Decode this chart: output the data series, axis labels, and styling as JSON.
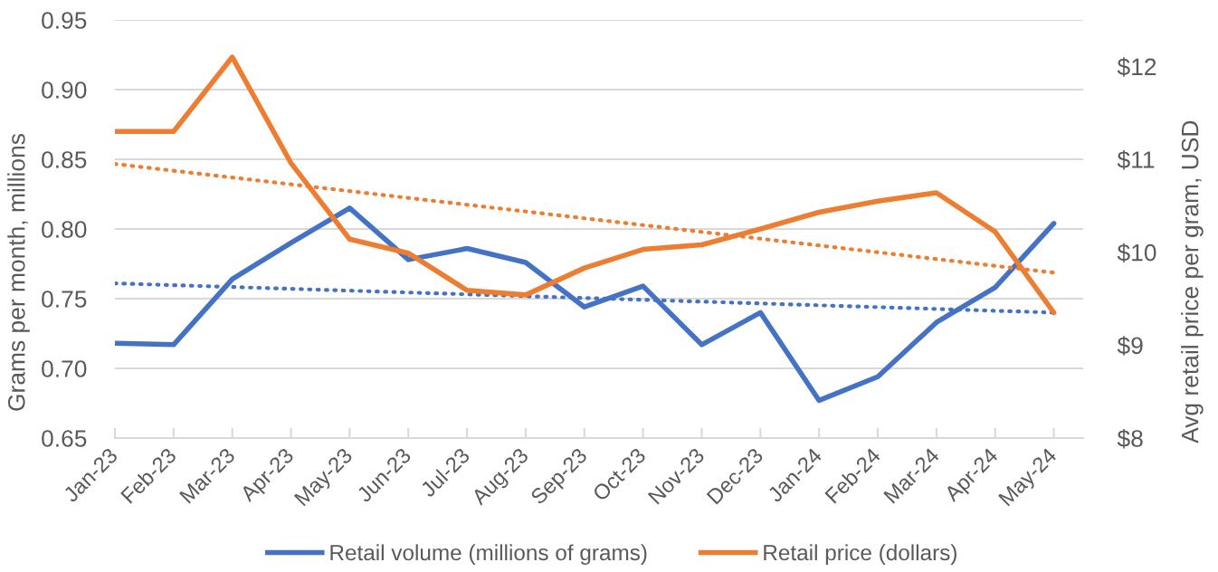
{
  "chart_data": {
    "type": "line",
    "line_style": "solid",
    "grid": "y",
    "legend": "bottom",
    "categories": [
      "Jan-23",
      "Feb-23",
      "Mar-23",
      "Apr-23",
      "May-23",
      "Jun-23",
      "Jul-23",
      "Aug-23",
      "Sep-23",
      "Oct-23",
      "Nov-23",
      "Dec-23",
      "Jan-24",
      "Feb-24",
      "Mar-24",
      "Apr-24",
      "May-24"
    ],
    "series": [
      {
        "name": "Retail volume (millions of grams)",
        "color": "#4472c4",
        "values": [
          0.718,
          0.717,
          0.764,
          0.79,
          0.815,
          0.778,
          0.786,
          0.776,
          0.744,
          0.759,
          0.717,
          0.74,
          0.677,
          0.694,
          0.733,
          0.758,
          0.804
        ]
      },
      {
        "name": "Retail price (dollars)",
        "color": "#ed7d31",
        "axis": "y2",
        "values": [
          11.3,
          11.3,
          12.1,
          10.96,
          10.14,
          9.99,
          9.59,
          9.54,
          9.83,
          10.03,
          10.08,
          10.25,
          10.43,
          10.55,
          10.64,
          10.22,
          9.35
        ]
      },
      {
        "color": "#4472c4",
        "line_style": "dotted",
        "x": [
          "Jan-23",
          "May-24"
        ],
        "values": [
          0.761,
          0.74
        ]
      },
      {
        "color": "#ed7d31",
        "line_style": "dotted",
        "axis": "y2",
        "x": [
          "Jan-23",
          "May-24"
        ],
        "values": [
          10.95,
          9.78
        ]
      }
    ],
    "ylabel": "Grams per month, millions",
    "y2label": "Avg retail price per gram, USD",
    "ylim": [
      0.65,
      0.95
    ],
    "yticks": [
      0.65,
      {
        "value": 0.7,
        "label": "0.70"
      },
      0.75,
      {
        "value": 0.8,
        "label": "0.80"
      },
      0.85,
      {
        "value": 0.9,
        "label": "0.90"
      },
      0.95
    ],
    "y2lim": [
      8,
      12.5
    ],
    "y2ticks": [
      {
        "value": 8,
        "label": "$8"
      },
      {
        "value": 9,
        "label": "$9"
      },
      {
        "value": 10,
        "label": "$10"
      },
      {
        "value": 11,
        "label": "$11"
      },
      {
        "value": 12,
        "label": "$12"
      }
    ]
  }
}
